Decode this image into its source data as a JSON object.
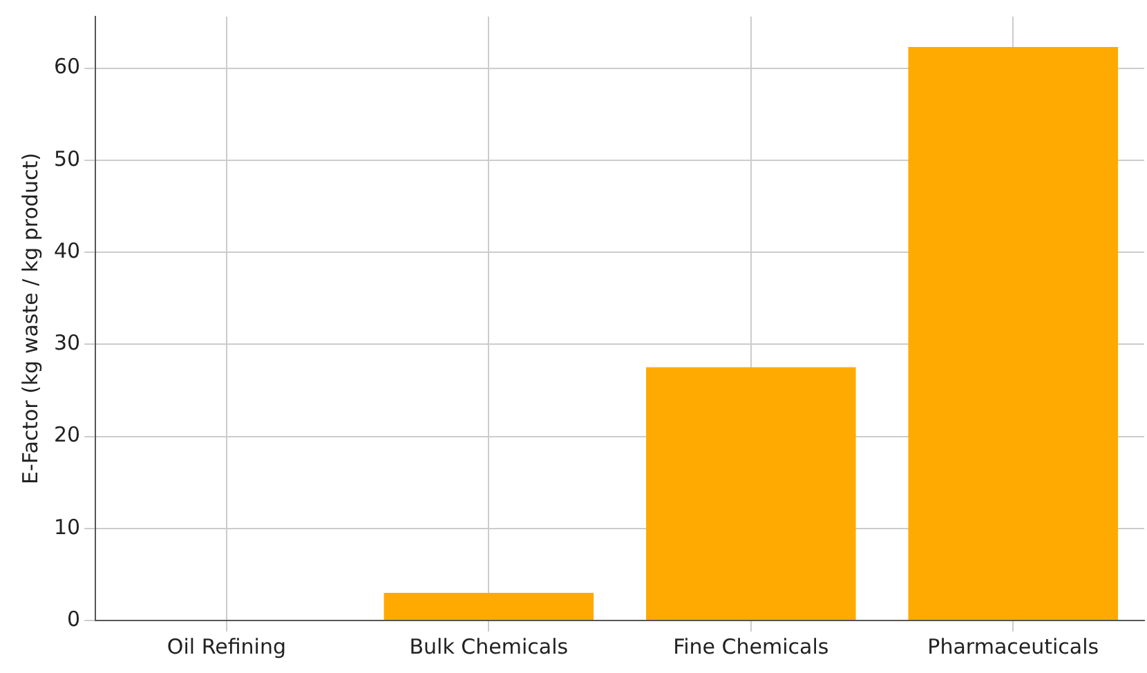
{
  "chart_data": {
    "type": "bar",
    "ylabel": "E-Factor (kg waste / kg product)",
    "categories": [
      "Oil Refining",
      "Bulk Chemicals",
      "Fine Chemicals",
      "Pharmaceuticals"
    ],
    "values": [
      null,
      3,
      27.5,
      62.3
    ],
    "color": "#ffaa00",
    "ylim": [
      0,
      65.6
    ],
    "yticks": [
      0,
      10,
      20,
      30,
      40,
      50,
      60
    ],
    "grid": true,
    "legend": false
  }
}
